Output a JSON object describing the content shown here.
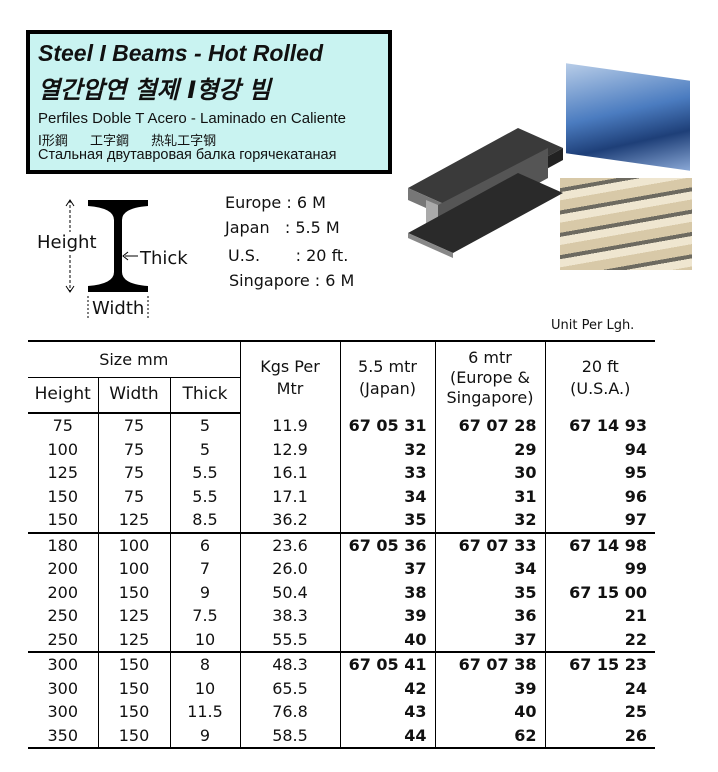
{
  "title": {
    "en": "Steel I Beams - Hot Rolled",
    "ko": "열간압연 철제 I형강 빔",
    "es": "Perfiles Doble T Acero - Laminado en Caliente",
    "cjk": "I形鋼 工字鋼 热轧工字钢",
    "ru": "Стальная двутавровая балка горячекатаная"
  },
  "diagram": {
    "height": "Height",
    "thick": "Thick",
    "width": "Width"
  },
  "lengths": [
    "Europe : 6 M",
    "Japan   : 5.5 M",
    "U.S.       : 20 ft.",
    "Singapore : 6 M"
  ],
  "unit_note": "Unit Per Lgh.",
  "table": {
    "headers": {
      "size": "Size mm",
      "height": "Height",
      "width": "Width",
      "thick": "Thick",
      "kgs": "Kgs Per Mtr",
      "japan": "5.5 mtr (Japan)",
      "europe": "6 mtr (Europe & Singapore)",
      "usa": "20 ft (U.S.A.)"
    },
    "rows": [
      [
        "75",
        "75",
        "5",
        "11.9",
        "67 05 31",
        "67 07 28",
        "67 14 93"
      ],
      [
        "100",
        "75",
        "5",
        "12.9",
        "32",
        "29",
        "94"
      ],
      [
        "125",
        "75",
        "5.5",
        "16.1",
        "33",
        "30",
        "95"
      ],
      [
        "150",
        "75",
        "5.5",
        "17.1",
        "34",
        "31",
        "96"
      ],
      [
        "150",
        "125",
        "8.5",
        "36.2",
        "35",
        "32",
        "97"
      ],
      [
        "180",
        "100",
        "6",
        "23.6",
        "67 05 36",
        "67 07 33",
        "67 14 98"
      ],
      [
        "200",
        "100",
        "7",
        "26.0",
        "37",
        "34",
        "99"
      ],
      [
        "200",
        "150",
        "9",
        "50.4",
        "38",
        "35",
        "67 15 00"
      ],
      [
        "250",
        "125",
        "7.5",
        "38.3",
        "39",
        "36",
        "21"
      ],
      [
        "250",
        "125",
        "10",
        "55.5",
        "40",
        "37",
        "22"
      ],
      [
        "300",
        "150",
        "8",
        "48.3",
        "67 05 41",
        "67 07 38",
        "67 15 23"
      ],
      [
        "300",
        "150",
        "10",
        "65.5",
        "42",
        "39",
        "24"
      ],
      [
        "300",
        "150",
        "11.5",
        "76.8",
        "43",
        "40",
        "25"
      ],
      [
        "350",
        "150",
        "9",
        "58.5",
        "44",
        "62",
        "26"
      ]
    ]
  }
}
